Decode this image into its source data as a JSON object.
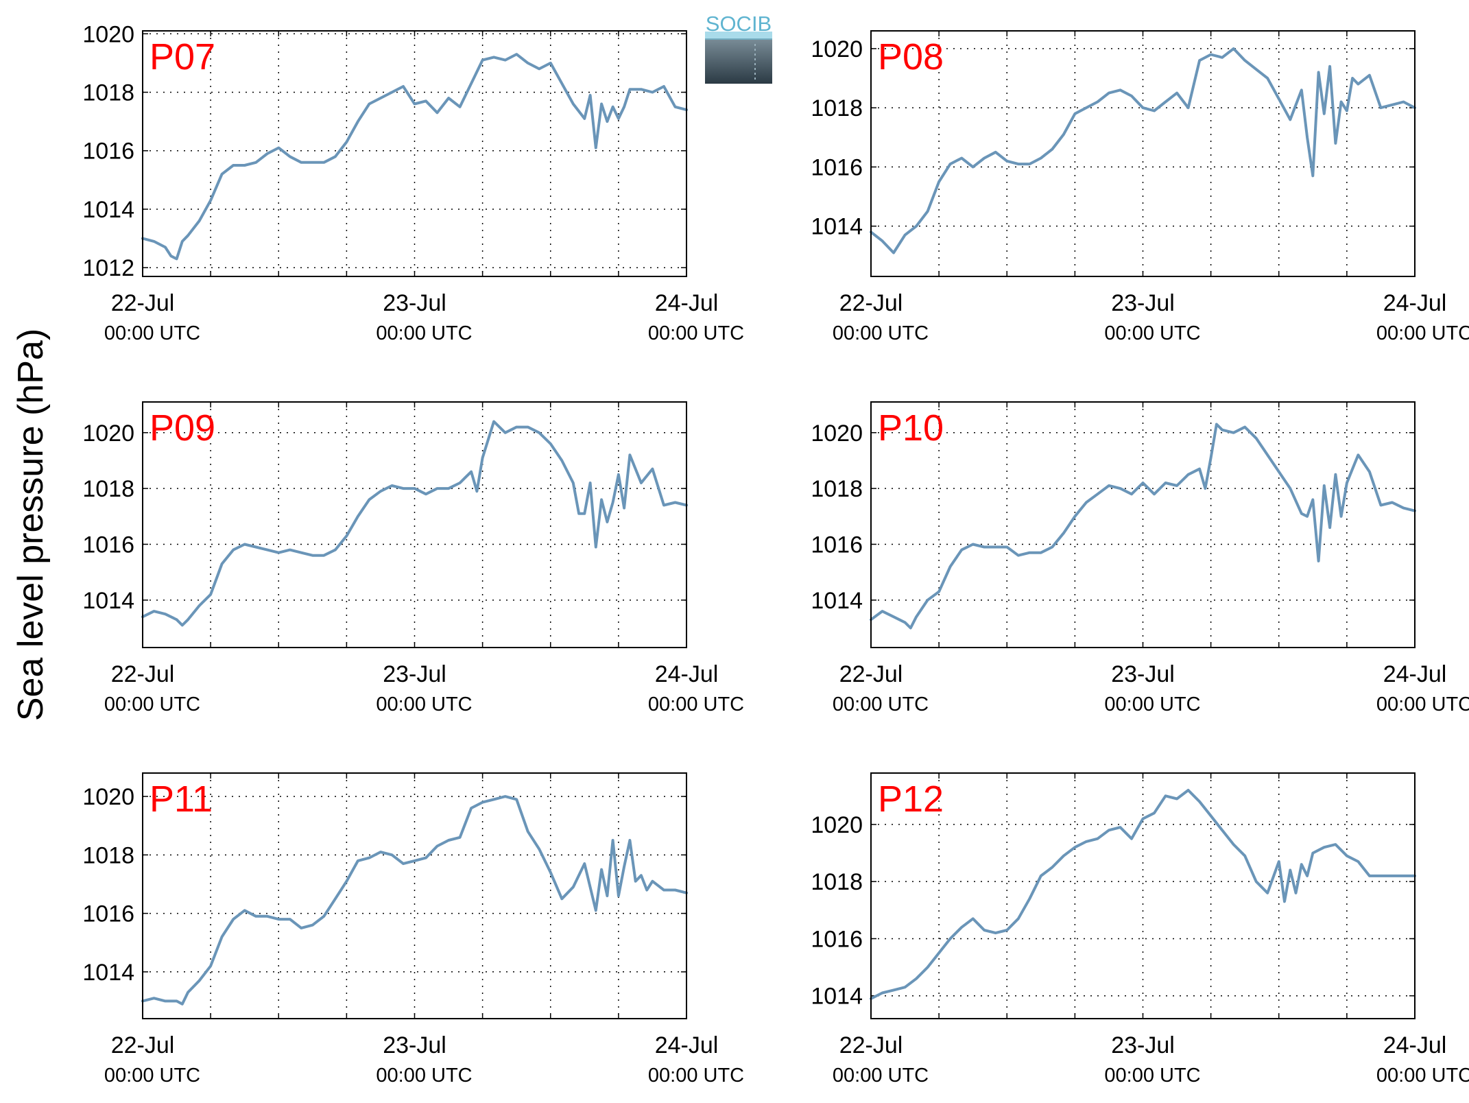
{
  "figure": {
    "ylabel": "Sea level pressure (hPa)",
    "logo": {
      "text": "SOCIB",
      "color_top": "#5fb4d0",
      "color_bottom": "#2b3a44"
    },
    "line_color": "#6a95b8",
    "title_color": "#ff0000"
  },
  "chart_data": [
    {
      "type": "line",
      "title": "P07",
      "x_ticks": [
        "22-Jul",
        "23-Jul",
        "24-Jul"
      ],
      "x_tick_sub": "00:00 UTC",
      "xlim": [
        0,
        48
      ],
      "ylim": [
        1011.7,
        1020.1
      ],
      "y_ticks": [
        1012,
        1014,
        1016,
        1018,
        1020
      ],
      "x": [
        0,
        1,
        2,
        2.5,
        3,
        3.5,
        4,
        5,
        6,
        7,
        8,
        9,
        10,
        11,
        12,
        13,
        14,
        15,
        16,
        17,
        18,
        19,
        20,
        21,
        22,
        23,
        24,
        25,
        26,
        27,
        28,
        29,
        30,
        31,
        32,
        33,
        34,
        35,
        36,
        37,
        38,
        39,
        39.5,
        40,
        40.5,
        41,
        41.5,
        42,
        42.5,
        43,
        44,
        45,
        46,
        47,
        48
      ],
      "values": [
        1013.0,
        1012.9,
        1012.7,
        1012.4,
        1012.3,
        1012.9,
        1013.1,
        1013.6,
        1014.3,
        1015.2,
        1015.5,
        1015.5,
        1015.6,
        1015.9,
        1016.1,
        1015.8,
        1015.6,
        1015.6,
        1015.6,
        1015.8,
        1016.3,
        1017.0,
        1017.6,
        1017.8,
        1018.0,
        1018.2,
        1017.6,
        1017.7,
        1017.3,
        1017.8,
        1017.5,
        1018.3,
        1019.1,
        1019.2,
        1019.1,
        1019.3,
        1019.0,
        1018.8,
        1019.0,
        1018.3,
        1017.6,
        1017.1,
        1017.9,
        1016.1,
        1017.6,
        1017.0,
        1017.5,
        1017.1,
        1017.5,
        1018.1,
        1018.1,
        1018.0,
        1018.2,
        1017.5,
        1017.4
      ]
    },
    {
      "type": "line",
      "title": "P08",
      "x_ticks": [
        "22-Jul",
        "23-Jul",
        "24-Jul"
      ],
      "x_tick_sub": "00:00 UTC",
      "xlim": [
        0,
        48
      ],
      "ylim": [
        1012.3,
        1020.6
      ],
      "y_ticks": [
        1014,
        1016,
        1018,
        1020
      ],
      "x": [
        0,
        1,
        2,
        3,
        4,
        5,
        6,
        7,
        8,
        9,
        10,
        11,
        12,
        13,
        14,
        15,
        16,
        17,
        18,
        19,
        20,
        21,
        22,
        23,
        24,
        25,
        26,
        27,
        28,
        29,
        30,
        31,
        32,
        33,
        34,
        35,
        36,
        37,
        38,
        38.5,
        39,
        39.5,
        40,
        40.5,
        41,
        41.5,
        42,
        42.5,
        43,
        44,
        45,
        46,
        47,
        48
      ],
      "values": [
        1013.8,
        1013.5,
        1013.1,
        1013.7,
        1014.0,
        1014.5,
        1015.5,
        1016.1,
        1016.3,
        1016.0,
        1016.3,
        1016.5,
        1016.2,
        1016.1,
        1016.1,
        1016.3,
        1016.6,
        1017.1,
        1017.8,
        1018.0,
        1018.2,
        1018.5,
        1018.6,
        1018.4,
        1018.0,
        1017.9,
        1018.2,
        1018.5,
        1018.0,
        1019.6,
        1019.8,
        1019.7,
        1020.0,
        1019.6,
        1019.3,
        1019.0,
        1018.3,
        1017.6,
        1018.6,
        1017.0,
        1015.7,
        1019.2,
        1017.8,
        1019.4,
        1016.8,
        1018.2,
        1017.9,
        1019.0,
        1018.8,
        1019.1,
        1018.0,
        1018.1,
        1018.2,
        1018.0
      ]
    },
    {
      "type": "line",
      "title": "P09",
      "x_ticks": [
        "22-Jul",
        "23-Jul",
        "24-Jul"
      ],
      "x_tick_sub": "00:00 UTC",
      "xlim": [
        0,
        48
      ],
      "ylim": [
        1012.3,
        1021.1
      ],
      "y_ticks": [
        1014,
        1016,
        1018,
        1020
      ],
      "x": [
        0,
        1,
        2,
        3,
        3.5,
        4,
        5,
        6,
        7,
        8,
        9,
        10,
        11,
        12,
        13,
        14,
        15,
        16,
        17,
        18,
        19,
        20,
        21,
        22,
        23,
        24,
        25,
        26,
        27,
        28,
        28.5,
        29,
        29.5,
        30,
        31,
        32,
        33,
        34,
        35,
        36,
        37,
        38,
        38.5,
        39,
        39.5,
        40,
        40.5,
        41,
        41.5,
        42,
        42.5,
        43,
        44,
        45,
        46,
        47,
        48
      ],
      "values": [
        1013.4,
        1013.6,
        1013.5,
        1013.3,
        1013.1,
        1013.3,
        1013.8,
        1014.2,
        1015.3,
        1015.8,
        1016.0,
        1015.9,
        1015.8,
        1015.7,
        1015.8,
        1015.7,
        1015.6,
        1015.6,
        1015.8,
        1016.3,
        1017.0,
        1017.6,
        1017.9,
        1018.1,
        1018.0,
        1018.0,
        1017.8,
        1018.0,
        1018.0,
        1018.2,
        1018.4,
        1018.6,
        1017.9,
        1019.1,
        1020.4,
        1020.0,
        1020.2,
        1020.2,
        1020.0,
        1019.6,
        1019.0,
        1018.2,
        1017.1,
        1017.1,
        1018.2,
        1015.9,
        1017.6,
        1016.8,
        1017.5,
        1018.5,
        1017.3,
        1019.2,
        1018.2,
        1018.7,
        1017.4,
        1017.5,
        1017.4
      ]
    },
    {
      "type": "line",
      "title": "P10",
      "x_ticks": [
        "22-Jul",
        "23-Jul",
        "24-Jul"
      ],
      "x_tick_sub": "00:00 UTC",
      "xlim": [
        0,
        48
      ],
      "ylim": [
        1012.3,
        1021.1
      ],
      "y_ticks": [
        1014,
        1016,
        1018,
        1020
      ],
      "x": [
        0,
        1,
        2,
        3,
        3.5,
        4,
        5,
        6,
        7,
        8,
        9,
        10,
        11,
        12,
        13,
        14,
        15,
        16,
        17,
        18,
        19,
        20,
        21,
        22,
        23,
        24,
        25,
        26,
        27,
        28,
        29,
        29.5,
        30,
        30.5,
        31,
        32,
        33,
        34,
        35,
        36,
        37,
        38,
        38.5,
        39,
        39.5,
        40,
        40.5,
        41,
        41.5,
        42,
        42.5,
        43,
        44,
        45,
        46,
        47,
        48
      ],
      "values": [
        1013.3,
        1013.6,
        1013.4,
        1013.2,
        1013.0,
        1013.4,
        1014.0,
        1014.3,
        1015.2,
        1015.8,
        1016.0,
        1015.9,
        1015.9,
        1015.9,
        1015.6,
        1015.7,
        1015.7,
        1015.9,
        1016.4,
        1017.0,
        1017.5,
        1017.8,
        1018.1,
        1018.0,
        1017.8,
        1018.2,
        1017.8,
        1018.2,
        1018.1,
        1018.5,
        1018.7,
        1018.0,
        1019.1,
        1020.3,
        1020.1,
        1020.0,
        1020.2,
        1019.8,
        1019.2,
        1018.6,
        1018.0,
        1017.1,
        1017.0,
        1017.6,
        1015.4,
        1018.1,
        1016.6,
        1018.5,
        1017.0,
        1018.2,
        1018.7,
        1019.2,
        1018.6,
        1017.4,
        1017.5,
        1017.3,
        1017.2
      ]
    },
    {
      "type": "line",
      "title": "P11",
      "x_ticks": [
        "22-Jul",
        "23-Jul",
        "24-Jul"
      ],
      "x_tick_sub": "00:00 UTC",
      "xlim": [
        0,
        48
      ],
      "ylim": [
        1012.4,
        1020.8
      ],
      "y_ticks": [
        1014,
        1016,
        1018,
        1020
      ],
      "x": [
        0,
        1,
        2,
        3,
        3.5,
        4,
        5,
        6,
        7,
        8,
        9,
        10,
        11,
        12,
        13,
        14,
        15,
        16,
        17,
        18,
        19,
        20,
        21,
        22,
        23,
        24,
        25,
        26,
        27,
        28,
        29,
        30,
        31,
        32,
        33,
        34,
        35,
        36,
        37,
        38,
        39,
        40,
        40.5,
        41,
        41.5,
        42,
        42.5,
        43,
        43.5,
        44,
        44.5,
        45,
        46,
        47,
        48
      ],
      "values": [
        1013.0,
        1013.1,
        1013.0,
        1013.0,
        1012.9,
        1013.3,
        1013.7,
        1014.2,
        1015.2,
        1015.8,
        1016.1,
        1015.9,
        1015.9,
        1015.8,
        1015.8,
        1015.5,
        1015.6,
        1015.9,
        1016.5,
        1017.1,
        1017.8,
        1017.9,
        1018.1,
        1018.0,
        1017.7,
        1017.8,
        1017.9,
        1018.3,
        1018.5,
        1018.6,
        1019.6,
        1019.8,
        1019.9,
        1020.0,
        1019.9,
        1018.8,
        1018.2,
        1017.4,
        1016.5,
        1016.9,
        1017.7,
        1016.1,
        1017.5,
        1016.6,
        1018.5,
        1016.6,
        1017.6,
        1018.5,
        1017.1,
        1017.3,
        1016.8,
        1017.1,
        1016.8,
        1016.8,
        1016.7
      ]
    },
    {
      "type": "line",
      "title": "P12",
      "x_ticks": [
        "22-Jul",
        "23-Jul",
        "24-Jul"
      ],
      "x_tick_sub": "00:00 UTC",
      "xlim": [
        0,
        48
      ],
      "ylim": [
        1013.2,
        1021.8
      ],
      "y_ticks": [
        1014,
        1016,
        1018,
        1020
      ],
      "x": [
        0,
        1,
        2,
        3,
        4,
        5,
        6,
        7,
        8,
        9,
        10,
        11,
        12,
        13,
        14,
        15,
        16,
        17,
        18,
        19,
        20,
        21,
        22,
        23,
        24,
        25,
        26,
        27,
        28,
        29,
        30,
        31,
        32,
        33,
        34,
        35,
        36,
        36.5,
        37,
        37.5,
        38,
        38.5,
        39,
        40,
        41,
        42,
        43,
        44,
        45,
        46,
        47,
        48
      ],
      "values": [
        1013.9,
        1014.1,
        1014.2,
        1014.3,
        1014.6,
        1015.0,
        1015.5,
        1016.0,
        1016.4,
        1016.7,
        1016.3,
        1016.2,
        1016.3,
        1016.7,
        1017.4,
        1018.2,
        1018.5,
        1018.9,
        1019.2,
        1019.4,
        1019.5,
        1019.8,
        1019.9,
        1019.5,
        1020.2,
        1020.4,
        1021.0,
        1020.9,
        1021.2,
        1020.8,
        1020.3,
        1019.8,
        1019.3,
        1018.9,
        1018.0,
        1017.6,
        1018.7,
        1017.3,
        1018.4,
        1017.6,
        1018.6,
        1018.2,
        1019.0,
        1019.2,
        1019.3,
        1018.9,
        1018.7,
        1018.2,
        1018.2,
        1018.2,
        1018.2,
        1018.2
      ]
    }
  ]
}
